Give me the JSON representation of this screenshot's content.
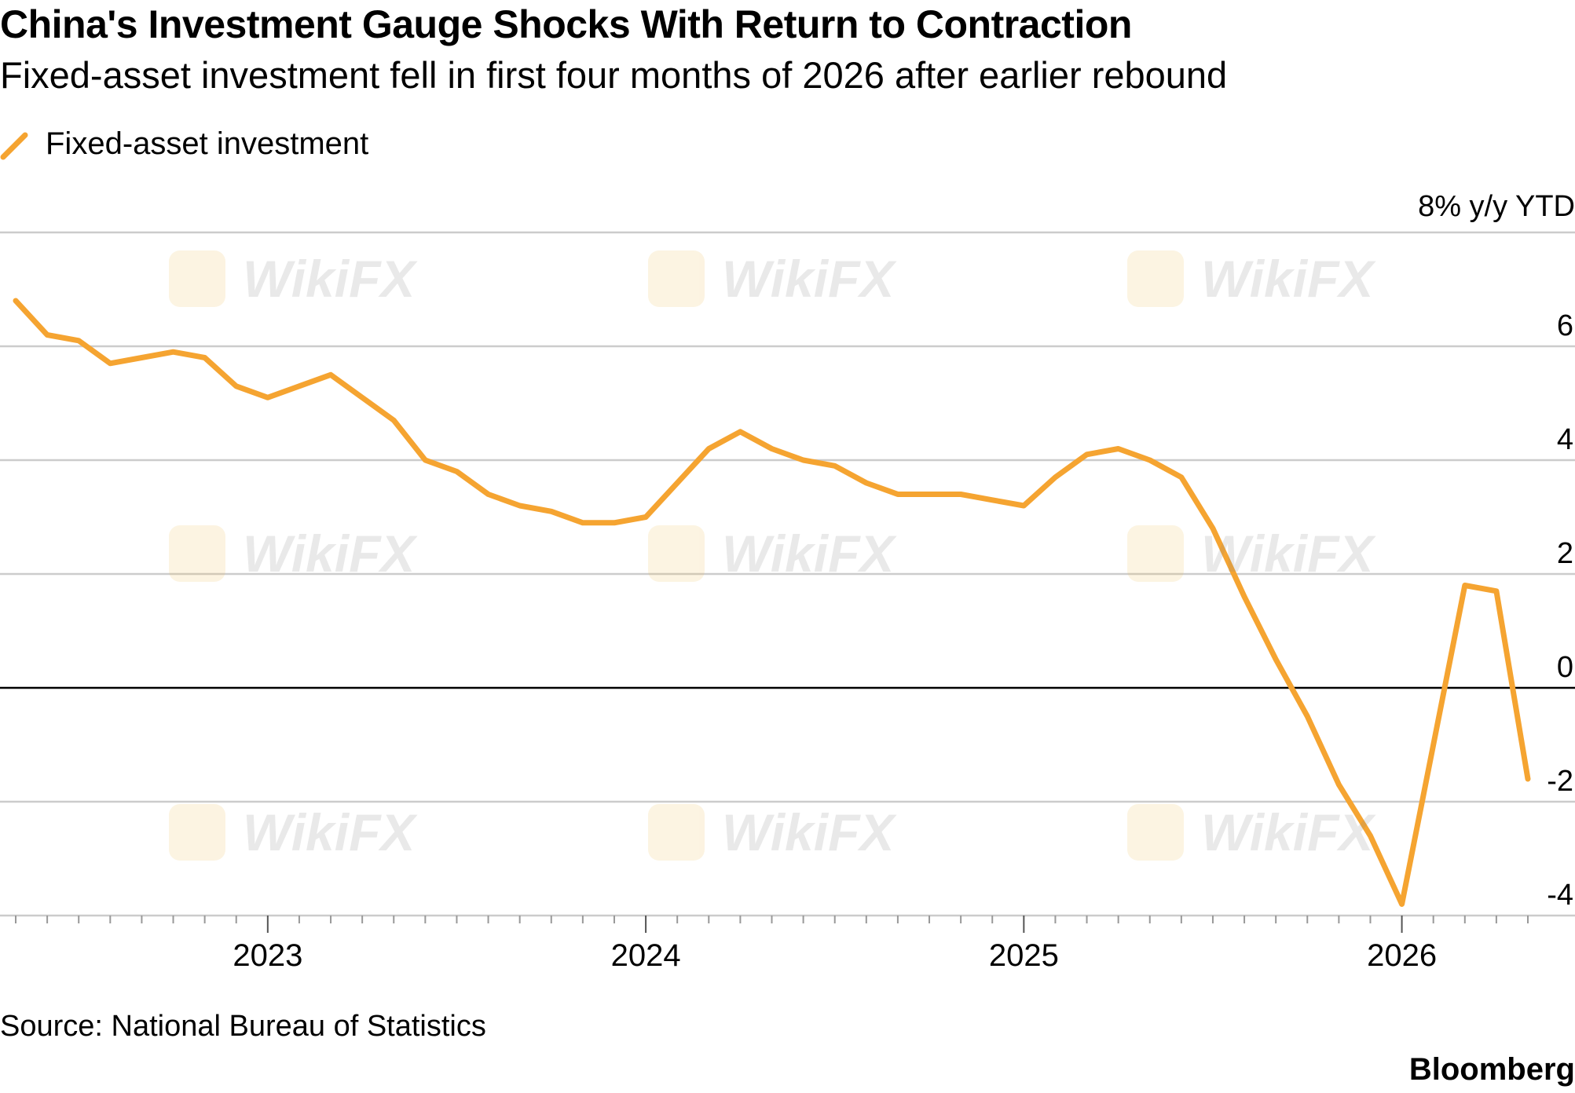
{
  "title": "China's Investment Gauge Shocks With Return to Contraction",
  "subtitle": "Fixed-asset investment fell in first four months of 2026 after earlier rebound",
  "source": "Source: National Bureau of Statistics",
  "brand": "Bloomberg",
  "watermark": "WikiFX",
  "colors": {
    "series": "#f5a431",
    "grid": "#cccccc",
    "zero": "#000000",
    "axis": "#999999"
  },
  "chart_data": {
    "type": "line",
    "title": "China's Investment Gauge Shocks With Return to Contraction",
    "subtitle": "Fixed-asset investment fell in first four months of 2026 after earlier rebound",
    "ylabel": "8% y/y YTD",
    "ylim": [
      -4,
      8
    ],
    "yticks": [
      {
        "value": 8,
        "label": "8% y/y YTD"
      },
      {
        "value": 6,
        "label": "6"
      },
      {
        "value": 4,
        "label": "4"
      },
      {
        "value": 2,
        "label": "2"
      },
      {
        "value": 0,
        "label": "0"
      },
      {
        "value": -2,
        "label": "-2"
      },
      {
        "value": -4,
        "label": "-4"
      }
    ],
    "xlim": [
      "2022-05",
      "2026-05"
    ],
    "xticks": [
      "2023",
      "2024",
      "2025",
      "2026"
    ],
    "grid": true,
    "legend": "top-left",
    "series": [
      {
        "name": "Fixed-asset investment",
        "color": "#f5a431",
        "points": [
          {
            "x": "2022-05",
            "y": 6.8
          },
          {
            "x": "2022-06",
            "y": 6.2
          },
          {
            "x": "2022-07",
            "y": 6.1
          },
          {
            "x": "2022-08",
            "y": 5.7
          },
          {
            "x": "2022-09",
            "y": 5.8
          },
          {
            "x": "2022-10",
            "y": 5.9
          },
          {
            "x": "2022-11",
            "y": 5.8
          },
          {
            "x": "2022-12",
            "y": 5.3
          },
          {
            "x": "2023-01",
            "y": 5.1
          },
          {
            "x": "2023-02",
            "y": 5.3
          },
          {
            "x": "2023-03",
            "y": 5.5
          },
          {
            "x": "2023-04",
            "y": 5.1
          },
          {
            "x": "2023-05",
            "y": 4.7
          },
          {
            "x": "2023-06",
            "y": 4.0
          },
          {
            "x": "2023-07",
            "y": 3.8
          },
          {
            "x": "2023-08",
            "y": 3.4
          },
          {
            "x": "2023-09",
            "y": 3.2
          },
          {
            "x": "2023-10",
            "y": 3.1
          },
          {
            "x": "2023-11",
            "y": 2.9
          },
          {
            "x": "2023-12",
            "y": 2.9
          },
          {
            "x": "2024-01",
            "y": 3.0
          },
          {
            "x": "2024-02",
            "y": 3.6
          },
          {
            "x": "2024-03",
            "y": 4.2
          },
          {
            "x": "2024-04",
            "y": 4.5
          },
          {
            "x": "2024-05",
            "y": 4.2
          },
          {
            "x": "2024-06",
            "y": 4.0
          },
          {
            "x": "2024-07",
            "y": 3.9
          },
          {
            "x": "2024-08",
            "y": 3.6
          },
          {
            "x": "2024-09",
            "y": 3.4
          },
          {
            "x": "2024-10",
            "y": 3.4
          },
          {
            "x": "2024-11",
            "y": 3.4
          },
          {
            "x": "2024-12",
            "y": 3.3
          },
          {
            "x": "2025-01",
            "y": 3.2
          },
          {
            "x": "2025-02",
            "y": 3.7
          },
          {
            "x": "2025-03",
            "y": 4.1
          },
          {
            "x": "2025-04",
            "y": 4.2
          },
          {
            "x": "2025-05",
            "y": 4.0
          },
          {
            "x": "2025-06",
            "y": 3.7
          },
          {
            "x": "2025-07",
            "y": 2.8
          },
          {
            "x": "2025-08",
            "y": 1.6
          },
          {
            "x": "2025-09",
            "y": 0.5
          },
          {
            "x": "2025-10",
            "y": -0.5
          },
          {
            "x": "2025-11",
            "y": -1.7
          },
          {
            "x": "2025-12",
            "y": -2.6
          },
          {
            "x": "2026-01",
            "y": -3.8
          },
          {
            "x": "2026-02",
            "y": -1.0
          },
          {
            "x": "2026-03",
            "y": 1.8
          },
          {
            "x": "2026-04",
            "y": 1.7
          },
          {
            "x": "2026-05",
            "y": -1.6
          }
        ]
      }
    ]
  }
}
